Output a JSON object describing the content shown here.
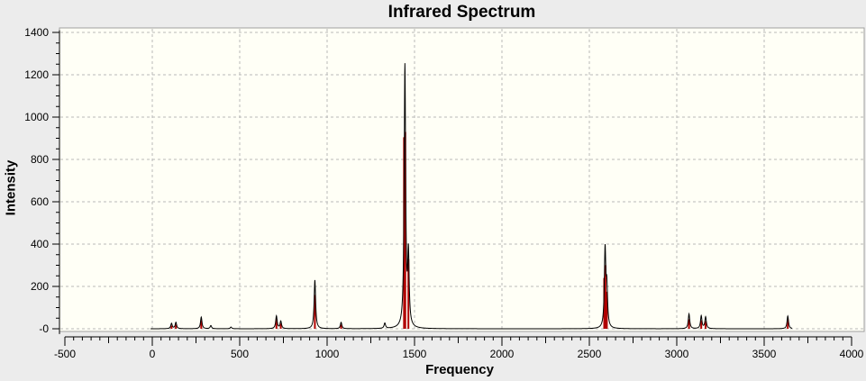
{
  "chart_data": {
    "type": "line",
    "title": "Infrared Spectrum",
    "xlabel": "Frequency",
    "ylabel": "Intensity",
    "xlim": [
      -500,
      4000
    ],
    "ylim": [
      -30,
      1420
    ],
    "x_ticks": [
      "-500",
      "0",
      "500",
      "1000",
      "1500",
      "2000",
      "2500",
      "3000",
      "3500",
      "4000"
    ],
    "y_ticks": [
      "-0",
      "200",
      "400",
      "600",
      "800",
      "1000",
      "1200",
      "1400"
    ],
    "grid": true,
    "legend": "none",
    "colors": {
      "plot_background": "#fffff6",
      "spectrum_line": "#000000",
      "stick_line": "#b00000",
      "grid": "#b8b8b8"
    },
    "series": [
      {
        "kind": "spectrum",
        "peaks": [
          {
            "x": 110,
            "y": 25
          },
          {
            "x": 135,
            "y": 30
          },
          {
            "x": 280,
            "y": 55
          },
          {
            "x": 335,
            "y": 15
          },
          {
            "x": 450,
            "y": 8
          },
          {
            "x": 710,
            "y": 60
          },
          {
            "x": 735,
            "y": 35
          },
          {
            "x": 930,
            "y": 230
          },
          {
            "x": 1080,
            "y": 30
          },
          {
            "x": 1330,
            "y": 25
          },
          {
            "x": 1445,
            "y": 1235
          },
          {
            "x": 1465,
            "y": 330
          },
          {
            "x": 2590,
            "y": 365
          },
          {
            "x": 2600,
            "y": 175
          },
          {
            "x": 3070,
            "y": 70
          },
          {
            "x": 3140,
            "y": 60
          },
          {
            "x": 3165,
            "y": 55
          },
          {
            "x": 3635,
            "y": 60
          }
        ]
      },
      {
        "kind": "sticks",
        "peaks": [
          {
            "x": 110,
            "y": 15
          },
          {
            "x": 135,
            "y": 20
          },
          {
            "x": 280,
            "y": 40
          },
          {
            "x": 710,
            "y": 45
          },
          {
            "x": 735,
            "y": 25
          },
          {
            "x": 930,
            "y": 160
          },
          {
            "x": 1080,
            "y": 20
          },
          {
            "x": 1440,
            "y": 905
          },
          {
            "x": 1447,
            "y": 930
          },
          {
            "x": 1465,
            "y": 330
          },
          {
            "x": 2585,
            "y": 240
          },
          {
            "x": 2592,
            "y": 300
          },
          {
            "x": 2600,
            "y": 175
          },
          {
            "x": 3070,
            "y": 45
          },
          {
            "x": 3140,
            "y": 40
          },
          {
            "x": 3165,
            "y": 35
          },
          {
            "x": 3635,
            "y": 45
          }
        ]
      }
    ]
  }
}
